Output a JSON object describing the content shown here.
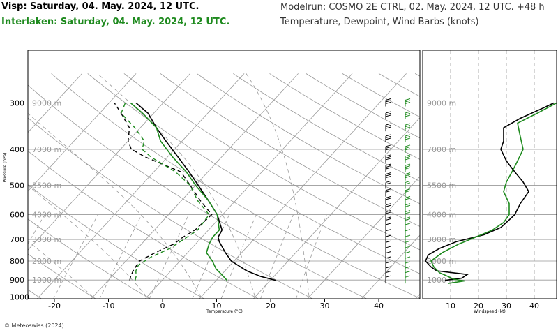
{
  "header": {
    "title_visp": "Visp: Saturday, 04. May. 2024, 12 UTC.",
    "title_interlaken": "Interlaken: Saturday, 04. May. 2024, 12 UTC.",
    "model_run": "Modelrun: COSMO 2E CTRL, 02. May. 2024, 12 UTC. +48 h",
    "subtitle": "Temperature, Dewpoint, Wind Barbs (knots)"
  },
  "footer": {
    "copyright": "© Meteoswiss (2024)"
  },
  "colors": {
    "visp": "#000000",
    "interlaken": "#1e8a1e",
    "grid": "#999999"
  },
  "chart_data": [
    {
      "type": "line",
      "name": "skew-t",
      "xlabel": "Temperature (°C)",
      "ylabel": "Pressure (hPa)",
      "x_ticks": [
        -20,
        -10,
        0,
        10,
        20,
        30,
        40
      ],
      "y_ticks": [
        300,
        400,
        500,
        600,
        700,
        800,
        900,
        1000
      ],
      "altitude_labels": [
        {
          "p": 300,
          "label": "9000 m"
        },
        {
          "p": 400,
          "label": "7000 m"
        },
        {
          "p": 500,
          "label": "5500 m"
        },
        {
          "p": 600,
          "label": "4000 m"
        },
        {
          "p": 700,
          "label": "3000 m"
        },
        {
          "p": 800,
          "label": "2000 m"
        },
        {
          "p": 900,
          "label": "1000 m"
        }
      ],
      "series": [
        {
          "name": "Visp temperature",
          "station": "visp",
          "style": "solid",
          "points": [
            [
              902,
              21
            ],
            [
              880,
              17.5
            ],
            [
              850,
              14
            ],
            [
              800,
              9.5
            ],
            [
              760,
              7
            ],
            [
              710,
              4
            ],
            [
              690,
              3
            ],
            [
              660,
              2.5
            ],
            [
              600,
              -1
            ],
            [
              550,
              -5
            ],
            [
              500,
              -9.5
            ],
            [
              460,
              -13.5
            ],
            [
              420,
              -18
            ],
            [
              380,
              -23
            ],
            [
              350,
              -27
            ],
            [
              320,
              -31
            ],
            [
              300,
              -35
            ]
          ]
        },
        {
          "name": "Visp dewpoint",
          "station": "visp",
          "style": "dashed",
          "points": [
            [
              902,
              -6
            ],
            [
              880,
              -6.5
            ],
            [
              850,
              -7
            ],
            [
              800,
              -7.5
            ],
            [
              760,
              -6
            ],
            [
              720,
              -4
            ],
            [
              690,
              -3.5
            ],
            [
              660,
              -2.5
            ],
            [
              600,
              -2
            ],
            [
              550,
              -6.5
            ],
            [
              500,
              -11
            ],
            [
              460,
              -15
            ],
            [
              420,
              -24
            ],
            [
              400,
              -28
            ],
            [
              380,
              -30
            ],
            [
              350,
              -32
            ],
            [
              320,
              -36
            ],
            [
              300,
              -39
            ]
          ]
        },
        {
          "name": "Interlaken temperature",
          "station": "interlaken",
          "style": "solid",
          "points": [
            [
              902,
              12
            ],
            [
              870,
              10
            ],
            [
              840,
              8
            ],
            [
              800,
              6
            ],
            [
              760,
              3.5
            ],
            [
              720,
              2.5
            ],
            [
              690,
              2
            ],
            [
              660,
              2
            ],
            [
              600,
              -1
            ],
            [
              550,
              -5
            ],
            [
              500,
              -10
            ],
            [
              460,
              -14
            ],
            [
              420,
              -19
            ],
            [
              380,
              -24
            ],
            [
              350,
              -27
            ],
            [
              320,
              -32
            ],
            [
              300,
              -36
            ]
          ]
        },
        {
          "name": "Interlaken dewpoint",
          "station": "interlaken",
          "style": "dashed",
          "points": [
            [
              902,
              -5
            ],
            [
              880,
              -5.5
            ],
            [
              850,
              -6.5
            ],
            [
              820,
              -7
            ],
            [
              780,
              -6
            ],
            [
              740,
              -4
            ],
            [
              700,
              -3
            ],
            [
              660,
              -2
            ],
            [
              600,
              -2.5
            ],
            [
              550,
              -7
            ],
            [
              500,
              -11
            ],
            [
              460,
              -16
            ],
            [
              420,
              -23
            ],
            [
              400,
              -26
            ],
            [
              380,
              -27
            ],
            [
              350,
              -31
            ],
            [
              320,
              -36
            ],
            [
              300,
              -37
            ]
          ]
        }
      ]
    },
    {
      "type": "line",
      "name": "windspeed-profile",
      "xlabel": "Windspeed (kt)",
      "x_ticks": [
        10,
        20,
        30,
        40
      ],
      "xlim": [
        0,
        48
      ],
      "altitude_labels": [
        "9000 m",
        "7000 m",
        "5500 m",
        "4000 m",
        "3000 m",
        "2000 m",
        "1000 m"
      ],
      "series": [
        {
          "name": "Visp windspeed",
          "station": "visp",
          "points": [
            [
              902,
              8
            ],
            [
              890,
              14
            ],
            [
              870,
              16
            ],
            [
              850,
              5
            ],
            [
              830,
              3
            ],
            [
              800,
              1
            ],
            [
              770,
              2
            ],
            [
              740,
              6
            ],
            [
              710,
              12
            ],
            [
              680,
              22
            ],
            [
              650,
              28
            ],
            [
              620,
              31
            ],
            [
              600,
              33
            ],
            [
              560,
              35
            ],
            [
              520,
              38
            ],
            [
              490,
              36
            ],
            [
              460,
              33
            ],
            [
              430,
              30
            ],
            [
              400,
              28
            ],
            [
              380,
              29
            ],
            [
              350,
              29
            ],
            [
              330,
              35
            ],
            [
              310,
              43
            ],
            [
              300,
              47
            ]
          ]
        },
        {
          "name": "Interlaken windspeed",
          "station": "interlaken",
          "points": [
            [
              920,
              9
            ],
            [
              905,
              15
            ],
            [
              895,
              11
            ],
            [
              880,
              9
            ],
            [
              860,
              6
            ],
            [
              830,
              4
            ],
            [
              800,
              3
            ],
            [
              760,
              7
            ],
            [
              720,
              13
            ],
            [
              690,
              19
            ],
            [
              660,
              25
            ],
            [
              630,
              29
            ],
            [
              600,
              31
            ],
            [
              560,
              31
            ],
            [
              520,
              29
            ],
            [
              490,
              30
            ],
            [
              460,
              32
            ],
            [
              430,
              34
            ],
            [
              400,
              36
            ],
            [
              370,
              35
            ],
            [
              340,
              34
            ],
            [
              320,
              41
            ],
            [
              300,
              48
            ]
          ]
        }
      ]
    }
  ]
}
